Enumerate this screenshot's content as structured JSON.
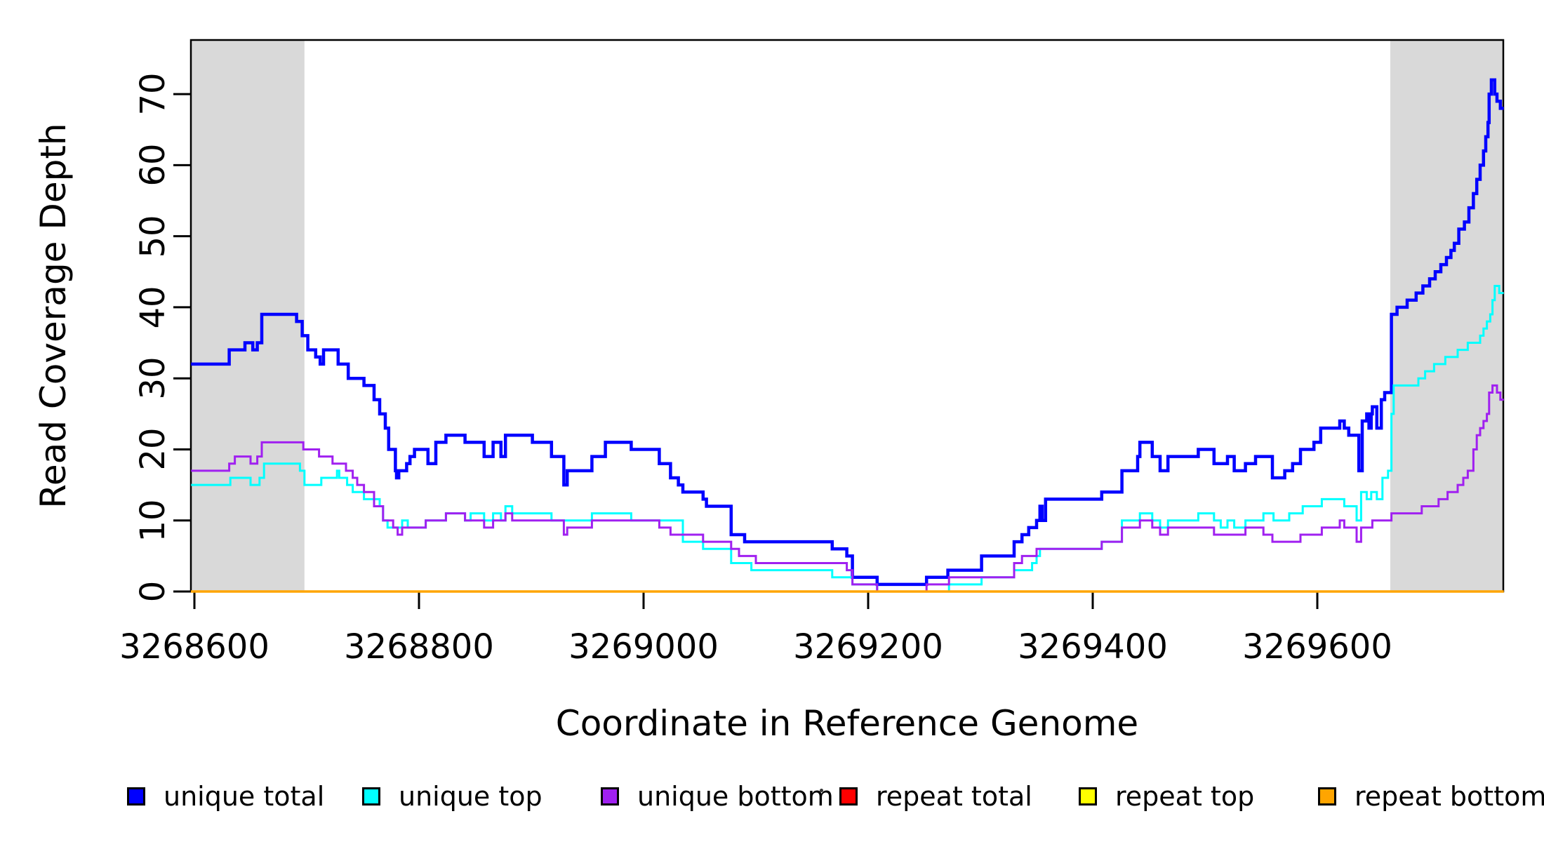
{
  "chart_data": {
    "type": "line",
    "subtype": "step-after",
    "title": "",
    "xlabel": "Coordinate in Reference Genome",
    "ylabel": "Read Coverage Depth",
    "grid": false,
    "legend_position": "bottom",
    "x_range": [
      3268597,
      3269766
    ],
    "y_range": [
      0,
      77.6
    ],
    "x_ticks": [
      "3268600",
      "3268800",
      "3269000",
      "3269200",
      "3269400",
      "3269600"
    ],
    "x_tick_values": [
      3268600,
      3268800,
      3269000,
      3269200,
      3269400,
      3269600
    ],
    "y_ticks": [
      "0",
      "10",
      "20",
      "30",
      "40",
      "50",
      "60",
      "70"
    ],
    "y_tick_values": [
      0,
      10,
      20,
      30,
      40,
      50,
      60,
      70
    ],
    "shaded_regions": [
      {
        "x0": 3268597,
        "x1": 3268698,
        "color": "#d9d9d9"
      },
      {
        "x0": 3269665,
        "x1": 3269766,
        "color": "#d9d9d9"
      }
    ],
    "series": [
      {
        "name": "unique total",
        "color": "#0000ff",
        "width": 4.5,
        "points": [
          [
            3268597,
            32
          ],
          [
            3268631,
            34
          ],
          [
            3268645,
            35
          ],
          [
            3268652,
            34
          ],
          [
            3268656,
            35
          ],
          [
            3268660,
            39
          ],
          [
            3268691,
            38
          ],
          [
            3268696,
            36
          ],
          [
            3268701,
            34
          ],
          [
            3268708,
            33
          ],
          [
            3268712,
            32
          ],
          [
            3268715,
            34
          ],
          [
            3268728,
            32
          ],
          [
            3268737,
            30
          ],
          [
            3268751,
            29
          ],
          [
            3268760,
            27
          ],
          [
            3268765,
            25
          ],
          [
            3268770,
            23
          ],
          [
            3268773,
            20
          ],
          [
            3268779,
            17
          ],
          [
            3268780,
            16
          ],
          [
            3268782,
            17
          ],
          [
            3268789,
            18
          ],
          [
            3268792,
            19
          ],
          [
            3268796,
            20
          ],
          [
            3268808,
            18
          ],
          [
            3268815,
            21
          ],
          [
            3268824,
            22
          ],
          [
            3268841,
            21
          ],
          [
            3268858,
            19
          ],
          [
            3268866,
            21
          ],
          [
            3268873,
            19
          ],
          [
            3268877,
            22
          ],
          [
            3268901,
            21
          ],
          [
            3268918,
            19
          ],
          [
            3268929,
            15
          ],
          [
            3268932,
            17
          ],
          [
            3268954,
            19
          ],
          [
            3268966,
            21
          ],
          [
            3268989,
            20
          ],
          [
            3269014,
            18
          ],
          [
            3269024,
            16
          ],
          [
            3269031,
            15
          ],
          [
            3269035,
            14
          ],
          [
            3269053,
            13
          ],
          [
            3269056,
            12
          ],
          [
            3269078,
            8
          ],
          [
            3269090,
            7
          ],
          [
            3269168,
            6
          ],
          [
            3269181,
            5
          ],
          [
            3269186,
            2
          ],
          [
            3269208,
            1
          ],
          [
            3269252,
            2
          ],
          [
            3269271,
            3
          ],
          [
            3269301,
            5
          ],
          [
            3269330,
            7
          ],
          [
            3269337,
            8
          ],
          [
            3269343,
            9
          ],
          [
            3269350,
            10
          ],
          [
            3269353,
            12
          ],
          [
            3269355,
            10
          ],
          [
            3269358,
            13
          ],
          [
            3269408,
            14
          ],
          [
            3269426,
            17
          ],
          [
            3269440,
            19
          ],
          [
            3269442,
            21
          ],
          [
            3269453,
            19
          ],
          [
            3269460,
            17
          ],
          [
            3269467,
            19
          ],
          [
            3269494,
            20
          ],
          [
            3269508,
            18
          ],
          [
            3269520,
            19
          ],
          [
            3269526,
            17
          ],
          [
            3269536,
            18
          ],
          [
            3269545,
            19
          ],
          [
            3269560,
            16
          ],
          [
            3269571,
            17
          ],
          [
            3269578,
            18
          ],
          [
            3269585,
            20
          ],
          [
            3269597,
            21
          ],
          [
            3269603,
            23
          ],
          [
            3269620,
            24
          ],
          [
            3269624,
            23
          ],
          [
            3269628,
            22
          ],
          [
            3269637,
            17
          ],
          [
            3269640,
            24
          ],
          [
            3269644,
            25
          ],
          [
            3269646,
            23
          ],
          [
            3269648,
            25
          ],
          [
            3269649,
            26
          ],
          [
            3269653,
            23
          ],
          [
            3269657,
            27
          ],
          [
            3269660,
            28
          ],
          [
            3269666,
            39
          ],
          [
            3269671,
            40
          ],
          [
            3269680,
            41
          ],
          [
            3269688,
            42
          ],
          [
            3269694,
            43
          ],
          [
            3269700,
            44
          ],
          [
            3269705,
            45
          ],
          [
            3269710,
            46
          ],
          [
            3269715,
            47
          ],
          [
            3269719,
            48
          ],
          [
            3269722,
            49
          ],
          [
            3269726,
            51
          ],
          [
            3269731,
            52
          ],
          [
            3269735,
            54
          ],
          [
            3269739,
            56
          ],
          [
            3269742,
            58
          ],
          [
            3269745,
            60
          ],
          [
            3269748,
            62
          ],
          [
            3269750,
            64
          ],
          [
            3269752,
            66
          ],
          [
            3269753,
            70
          ],
          [
            3269755,
            72
          ],
          [
            3269758,
            70
          ],
          [
            3269760,
            69
          ],
          [
            3269763,
            68
          ],
          [
            3269766,
            68
          ]
        ]
      },
      {
        "name": "unique top",
        "color": "#00ffff",
        "width": 3,
        "points": [
          [
            3268597,
            15
          ],
          [
            3268632,
            16
          ],
          [
            3268650,
            15
          ],
          [
            3268658,
            16
          ],
          [
            3268662,
            18
          ],
          [
            3268694,
            17
          ],
          [
            3268698,
            15
          ],
          [
            3268713,
            16
          ],
          [
            3268727,
            17
          ],
          [
            3268729,
            16
          ],
          [
            3268736,
            15
          ],
          [
            3268741,
            14
          ],
          [
            3268751,
            13
          ],
          [
            3268765,
            12
          ],
          [
            3268768,
            10
          ],
          [
            3268772,
            9
          ],
          [
            3268785,
            10
          ],
          [
            3268790,
            9
          ],
          [
            3268806,
            10
          ],
          [
            3268824,
            11
          ],
          [
            3268841,
            10
          ],
          [
            3268846,
            11
          ],
          [
            3268858,
            10
          ],
          [
            3268866,
            11
          ],
          [
            3268873,
            10
          ],
          [
            3268877,
            12
          ],
          [
            3268883,
            11
          ],
          [
            3268918,
            10
          ],
          [
            3268954,
            11
          ],
          [
            3268989,
            10
          ],
          [
            3269035,
            7
          ],
          [
            3269053,
            6
          ],
          [
            3269078,
            4
          ],
          [
            3269096,
            3
          ],
          [
            3269168,
            2
          ],
          [
            3269186,
            1
          ],
          [
            3269208,
            0
          ],
          [
            3269272,
            1
          ],
          [
            3269301,
            2
          ],
          [
            3269330,
            3
          ],
          [
            3269346,
            4
          ],
          [
            3269350,
            5
          ],
          [
            3269353,
            6
          ],
          [
            3269408,
            7
          ],
          [
            3269426,
            10
          ],
          [
            3269442,
            11
          ],
          [
            3269453,
            10
          ],
          [
            3269460,
            9
          ],
          [
            3269467,
            10
          ],
          [
            3269494,
            11
          ],
          [
            3269508,
            10
          ],
          [
            3269514,
            9
          ],
          [
            3269520,
            10
          ],
          [
            3269526,
            9
          ],
          [
            3269536,
            10
          ],
          [
            3269552,
            11
          ],
          [
            3269561,
            10
          ],
          [
            3269575,
            11
          ],
          [
            3269587,
            12
          ],
          [
            3269604,
            13
          ],
          [
            3269624,
            12
          ],
          [
            3269635,
            10
          ],
          [
            3269639,
            14
          ],
          [
            3269644,
            13
          ],
          [
            3269648,
            14
          ],
          [
            3269653,
            13
          ],
          [
            3269658,
            16
          ],
          [
            3269663,
            17
          ],
          [
            3269666,
            25
          ],
          [
            3269668,
            29
          ],
          [
            3269690,
            30
          ],
          [
            3269696,
            31
          ],
          [
            3269704,
            32
          ],
          [
            3269714,
            33
          ],
          [
            3269725,
            34
          ],
          [
            3269734,
            35
          ],
          [
            3269745,
            36
          ],
          [
            3269748,
            37
          ],
          [
            3269751,
            38
          ],
          [
            3269754,
            39
          ],
          [
            3269756,
            41
          ],
          [
            3269758,
            43
          ],
          [
            3269762,
            42
          ],
          [
            3269766,
            42
          ]
        ]
      },
      {
        "name": "unique bottom",
        "color": "#a020f0",
        "width": 3,
        "points": [
          [
            3268597,
            17
          ],
          [
            3268631,
            18
          ],
          [
            3268636,
            19
          ],
          [
            3268650,
            18
          ],
          [
            3268656,
            19
          ],
          [
            3268660,
            21
          ],
          [
            3268697,
            20
          ],
          [
            3268711,
            19
          ],
          [
            3268723,
            18
          ],
          [
            3268735,
            17
          ],
          [
            3268741,
            16
          ],
          [
            3268745,
            15
          ],
          [
            3268751,
            14
          ],
          [
            3268760,
            12
          ],
          [
            3268768,
            10
          ],
          [
            3268777,
            9
          ],
          [
            3268781,
            8
          ],
          [
            3268785,
            9
          ],
          [
            3268806,
            10
          ],
          [
            3268824,
            11
          ],
          [
            3268841,
            10
          ],
          [
            3268858,
            9
          ],
          [
            3268866,
            10
          ],
          [
            3268877,
            11
          ],
          [
            3268883,
            10
          ],
          [
            3268929,
            8
          ],
          [
            3268932,
            9
          ],
          [
            3268954,
            10
          ],
          [
            3269014,
            9
          ],
          [
            3269024,
            8
          ],
          [
            3269053,
            7
          ],
          [
            3269078,
            6
          ],
          [
            3269085,
            5
          ],
          [
            3269100,
            4
          ],
          [
            3269181,
            3
          ],
          [
            3269186,
            1
          ],
          [
            3269208,
            0
          ],
          [
            3269252,
            1
          ],
          [
            3269272,
            2
          ],
          [
            3269330,
            4
          ],
          [
            3269337,
            5
          ],
          [
            3269350,
            6
          ],
          [
            3269408,
            7
          ],
          [
            3269426,
            9
          ],
          [
            3269442,
            10
          ],
          [
            3269453,
            9
          ],
          [
            3269460,
            8
          ],
          [
            3269467,
            9
          ],
          [
            3269508,
            8
          ],
          [
            3269536,
            9
          ],
          [
            3269552,
            8
          ],
          [
            3269560,
            7
          ],
          [
            3269585,
            8
          ],
          [
            3269604,
            9
          ],
          [
            3269620,
            10
          ],
          [
            3269624,
            9
          ],
          [
            3269635,
            7
          ],
          [
            3269639,
            9
          ],
          [
            3269649,
            10
          ],
          [
            3269666,
            11
          ],
          [
            3269693,
            12
          ],
          [
            3269708,
            13
          ],
          [
            3269716,
            14
          ],
          [
            3269725,
            15
          ],
          [
            3269730,
            16
          ],
          [
            3269734,
            17
          ],
          [
            3269739,
            20
          ],
          [
            3269742,
            22
          ],
          [
            3269745,
            23
          ],
          [
            3269748,
            24
          ],
          [
            3269751,
            25
          ],
          [
            3269753,
            28
          ],
          [
            3269756,
            29
          ],
          [
            3269760,
            28
          ],
          [
            3269763,
            27
          ],
          [
            3269766,
            27
          ]
        ]
      },
      {
        "name": "repeat total",
        "color": "#ff0000",
        "width": 3,
        "points": [
          [
            3268597,
            0
          ],
          [
            3269766,
            0
          ]
        ]
      },
      {
        "name": "repeat top",
        "color": "#ffff00",
        "width": 3,
        "points": [
          [
            3268597,
            0
          ],
          [
            3269766,
            0
          ]
        ]
      },
      {
        "name": "repeat bottom",
        "color": "#ffa500",
        "width": 3.5,
        "points": [
          [
            3268597,
            0
          ],
          [
            3269766,
            0
          ]
        ]
      }
    ],
    "legend_stray_dot": true
  }
}
